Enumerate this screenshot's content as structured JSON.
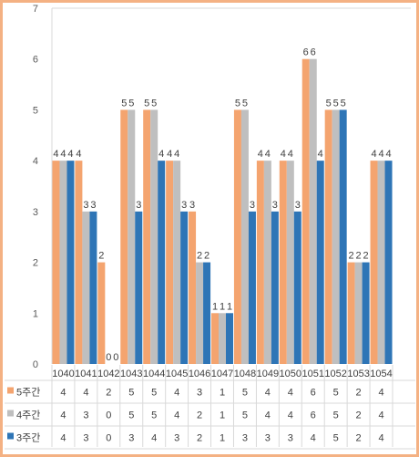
{
  "chart_data": {
    "type": "bar",
    "categories": [
      "1040",
      "1041",
      "1042",
      "1043",
      "1044",
      "1045",
      "1046",
      "1047",
      "1048",
      "1049",
      "1050",
      "1051",
      "1052",
      "1053",
      "1054"
    ],
    "series": [
      {
        "name": "5주간",
        "color": "#f4a46f",
        "values": [
          4,
          4,
          2,
          5,
          5,
          4,
          3,
          1,
          5,
          4,
          4,
          6,
          5,
          2,
          4
        ]
      },
      {
        "name": "4주간",
        "color": "#bfbfbf",
        "values": [
          4,
          3,
          0,
          5,
          5,
          4,
          2,
          1,
          5,
          4,
          4,
          6,
          5,
          2,
          4
        ]
      },
      {
        "name": "3주간",
        "color": "#2e75b6",
        "values": [
          4,
          3,
          0,
          3,
          4,
          3,
          2,
          1,
          3,
          3,
          3,
          4,
          5,
          2,
          4
        ]
      }
    ],
    "ylim": [
      0,
      7
    ],
    "yticks": [
      "0",
      "1",
      "2",
      "3",
      "4",
      "5",
      "6",
      "7"
    ],
    "grid": false,
    "legend": "data-table-below",
    "data_table": true
  }
}
